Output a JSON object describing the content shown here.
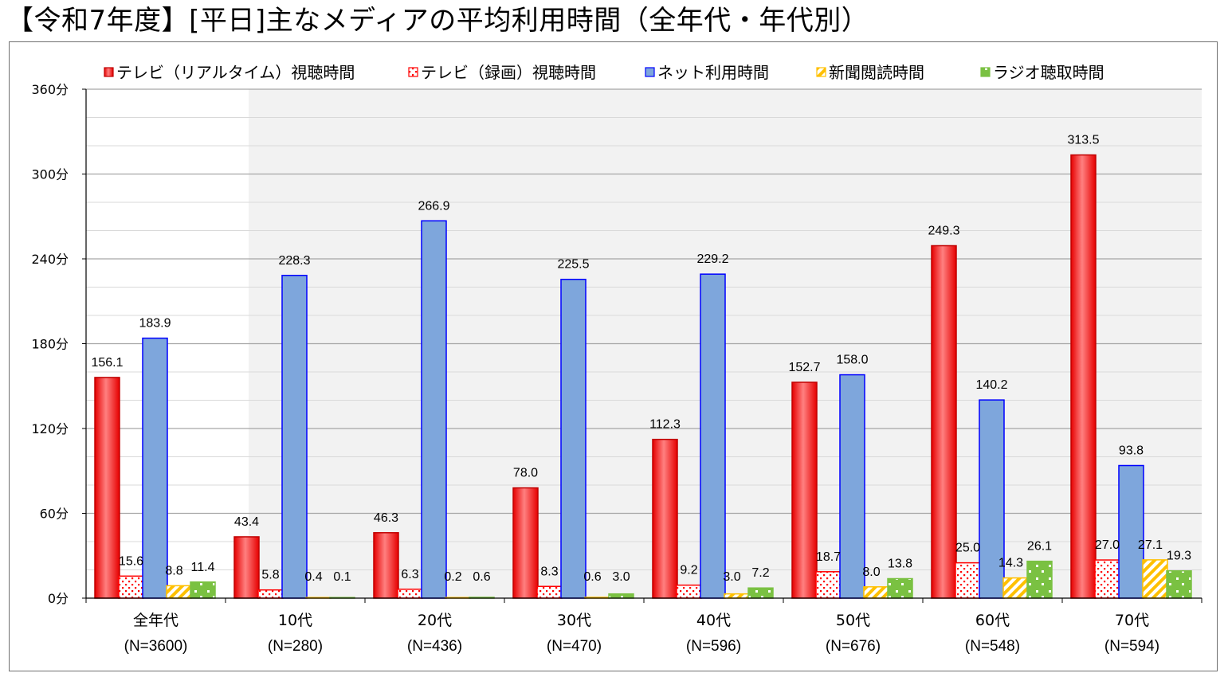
{
  "title": "【令和7年度】[平日]主なメディアの平均利用時間（全年代・年代別）",
  "chart_data": {
    "type": "bar",
    "categories": [
      "全年代",
      "10代",
      "20代",
      "30代",
      "40代",
      "50代",
      "60代",
      "70代"
    ],
    "sample_sizes": [
      "(N=3600)",
      "(N=280)",
      "(N=436)",
      "(N=470)",
      "(N=596)",
      "(N=676)",
      "(N=548)",
      "(N=594)"
    ],
    "series": [
      {
        "name": "テレビ（リアルタイム）視聴時間",
        "color": "#ff0000",
        "style": "gradient-red",
        "values": [
          156.1,
          43.4,
          46.3,
          78.0,
          112.3,
          152.7,
          249.3,
          313.5
        ],
        "labels": [
          "156.1",
          "43.4",
          "46.3",
          "78.0",
          "112.3",
          "152.7",
          "249.3",
          "313.5"
        ]
      },
      {
        "name": "テレビ（録画）視聴時間",
        "color": "#ff0000",
        "style": "dotted-red",
        "values": [
          15.6,
          5.8,
          6.3,
          8.3,
          9.2,
          18.7,
          25.0,
          27.0
        ],
        "labels": [
          "15.6",
          "5.8",
          "6.3",
          "8.3",
          "9.2",
          "18.7",
          "25.0",
          "27.0"
        ]
      },
      {
        "name": "ネット利用時間",
        "color": "#7ea6dc",
        "style": "blue",
        "values": [
          183.9,
          228.3,
          266.9,
          225.5,
          229.2,
          158.0,
          140.2,
          93.8
        ],
        "labels": [
          "183.9",
          "228.3",
          "266.9",
          "225.5",
          "229.2",
          "158.0",
          "140.2",
          "93.8"
        ]
      },
      {
        "name": "新聞閲読時間",
        "color": "#ffc000",
        "style": "hatched-orange",
        "values": [
          8.8,
          0.4,
          0.2,
          0.6,
          3.0,
          8.0,
          14.3,
          27.1
        ],
        "labels": [
          "8.8",
          "0.4",
          "0.2",
          "0.6",
          "3.0",
          "8.0",
          "14.3",
          "27.1"
        ]
      },
      {
        "name": "ラジオ聴取時間",
        "color": "#7ac142",
        "style": "green",
        "values": [
          11.4,
          0.1,
          0.6,
          3.0,
          7.2,
          13.8,
          26.1,
          19.3
        ],
        "labels": [
          "11.4",
          "0.1",
          "0.6",
          "3.0",
          "7.2",
          "13.8",
          "26.1",
          "19.3"
        ]
      }
    ],
    "y_ticks": [
      "0分",
      "60分",
      "120分",
      "180分",
      "240分",
      "300分",
      "360分"
    ],
    "ylim": [
      0,
      360
    ],
    "xlabel": "",
    "ylabel": "",
    "legend": "top",
    "grid": true
  }
}
